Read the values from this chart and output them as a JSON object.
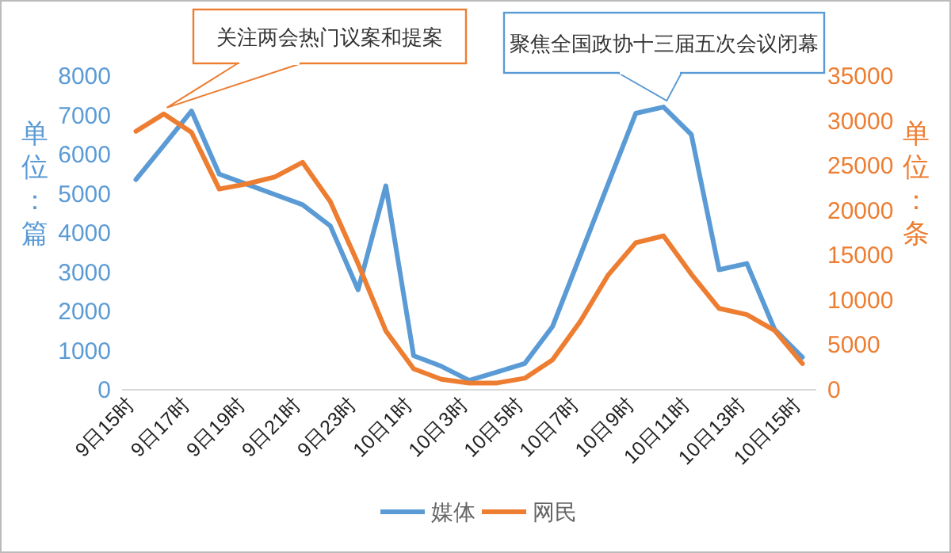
{
  "chart_data": {
    "type": "line",
    "categories": [
      "9日15时",
      null,
      "9日17时",
      null,
      "9日19时",
      null,
      "9日21时",
      null,
      "9日23时",
      null,
      "10日1时",
      null,
      "10日3时",
      null,
      "10日5时",
      null,
      "10日7时",
      null,
      "10日9时",
      null,
      "10日11时",
      null,
      "10日13时",
      null,
      "10日15时"
    ],
    "series": [
      {
        "name": "媒体",
        "color": "#5b9bd5",
        "values": [
          5360,
          6230,
          7110,
          5500,
          5240,
          4980,
          4720,
          4180,
          2550,
          5200,
          870,
          600,
          240,
          450,
          670,
          1610,
          3420,
          5240,
          7050,
          7210,
          6510,
          3060,
          3220,
          1540,
          830
        ]
      },
      {
        "name": "网民",
        "color": "#ed7d31",
        "axis": "y2",
        "values": [
          28840,
          30770,
          28720,
          22390,
          22980,
          23740,
          25380,
          20990,
          14070,
          6570,
          2340,
          1170,
          760,
          760,
          1290,
          3340,
          7620,
          12780,
          16410,
          17170,
          12900,
          9080,
          8380,
          6620,
          2930
        ]
      }
    ],
    "ylim": [
      0,
      8000
    ],
    "yticks": [
      0,
      1000,
      2000,
      3000,
      4000,
      5000,
      6000,
      7000,
      8000
    ],
    "y2lim": [
      0,
      35000
    ],
    "y2ticks": [
      0,
      5000,
      10000,
      15000,
      20000,
      25000,
      30000,
      35000
    ],
    "ylabel": "单位：篇",
    "y2label": "单位：条",
    "annotations": [
      "关注两会热门议案和提案",
      "聚焦全国政协十三届五次会议闭幕"
    ],
    "legend": "bottom",
    "marker": "none",
    "line_style": "solid"
  }
}
